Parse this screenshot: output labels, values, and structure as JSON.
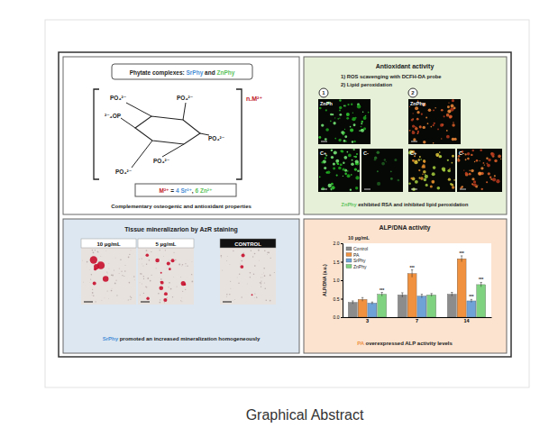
{
  "caption": "Graphical Abstract",
  "panels": {
    "structure": {
      "title": [
        "Phytate complexes: ",
        "SrPhy",
        " and ",
        "ZnPhy"
      ],
      "groups": [
        "PO₄²⁻",
        "PO₄²⁻",
        "²⁻₄OP",
        "PO₄²⁻",
        "PO₄²⁻",
        "PO₄²⁻"
      ],
      "counter": "n.M²⁺",
      "metal": [
        "M²⁺",
        " = ",
        "4 Sr²⁺",
        ", ",
        "6 Zn²⁺"
      ],
      "footer": "Complementary osteogenic and antioxidant properties"
    },
    "antioxidant": {
      "title": "Antioxidant activity",
      "steps": [
        "1) ROS scavenging with DCFH-DA probe",
        "2) Lipid peroxidation"
      ],
      "markers": [
        "1",
        "2"
      ],
      "images": [
        "ZnPh",
        "ZnPhy",
        "C+",
        "C-",
        "C+",
        "C-"
      ],
      "footer": [
        "ZnPhy",
        " exhibited RSA and inhibited lipid peroxidation"
      ]
    },
    "mineralization": {
      "title": "Tissue mineralizarion by AzR staining",
      "images": [
        "10 µg/mL",
        "5 µg/mL",
        "CONTROL"
      ],
      "footer": [
        "SrPhy",
        " promoted an increased mineralization homogeneously"
      ]
    },
    "alp": {
      "footer": [
        "PA",
        " overexpressed ALP activity levels"
      ]
    }
  },
  "chart_data": {
    "type": "bar",
    "title": "ALP/DNA activity",
    "subtitle": "10 µg/mL",
    "y_label": "ALP/DNA (a.u.)",
    "categories": [
      "3",
      "7",
      "14"
    ],
    "series": [
      {
        "name": "Control",
        "color": "#8c8c8c",
        "values": [
          0.4,
          0.6,
          0.62
        ],
        "errors": [
          0.04,
          0.06,
          0.05
        ]
      },
      {
        "name": "PA",
        "color": "#f0913f",
        "values": [
          0.48,
          1.18,
          1.58
        ],
        "errors": [
          0.05,
          0.1,
          0.08
        ]
      },
      {
        "name": "SrPhy",
        "color": "#6fa3d8",
        "values": [
          0.38,
          0.57,
          0.44
        ],
        "errors": [
          0.03,
          0.05,
          0.04
        ]
      },
      {
        "name": "ZnPhy",
        "color": "#7fd27f",
        "values": [
          0.62,
          0.6,
          0.88
        ],
        "errors": [
          0.05,
          0.04,
          0.06
        ]
      }
    ],
    "annotations": [
      {
        "text": "***",
        "series": 3,
        "category": 0
      },
      {
        "text": "***",
        "series": 1,
        "category": 1
      },
      {
        "text": "***",
        "series": 1,
        "category": 2
      },
      {
        "text": "***",
        "series": 2,
        "category": 2
      },
      {
        "text": "***",
        "series": 3,
        "category": 2
      }
    ],
    "ylim": [
      0,
      2
    ],
    "yticks": [
      {
        "value": 0,
        "label": "0.0"
      },
      {
        "value": 0.5,
        "label": "0.5"
      },
      {
        "value": 1,
        "label": "1.0"
      },
      {
        "value": 1.5,
        "label": "1.5"
      },
      {
        "value": 2,
        "label": "2.0"
      }
    ],
    "legend": "upper left",
    "grid": false
  }
}
